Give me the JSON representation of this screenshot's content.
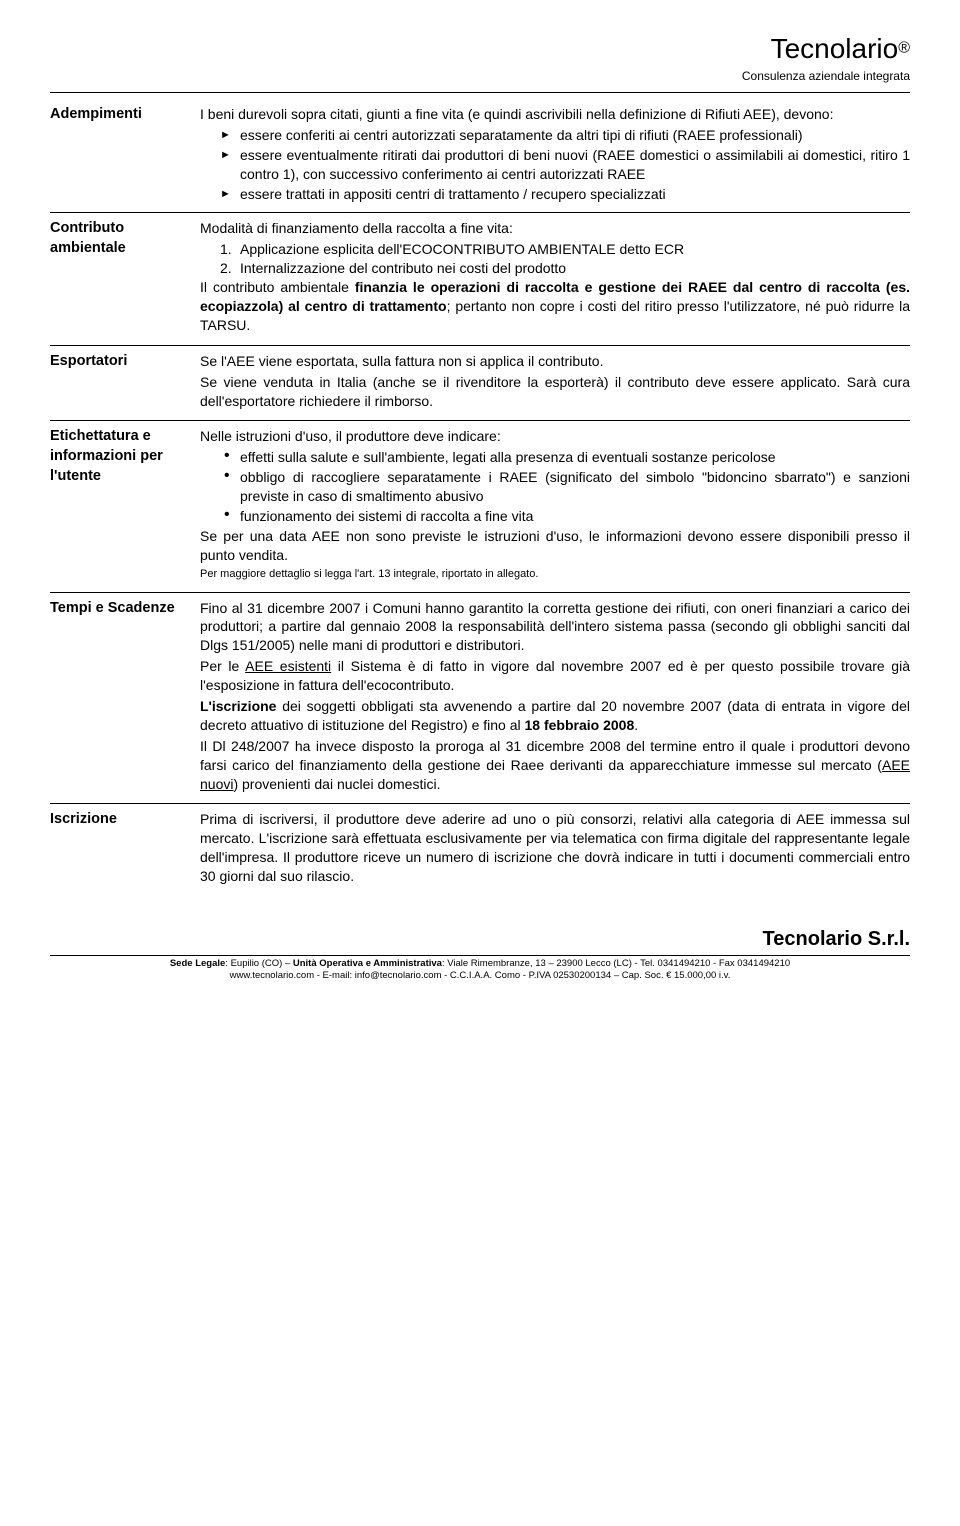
{
  "brand": {
    "name": "Tecnolario",
    "sup": "®",
    "sub": "Consulenza aziendale integrata"
  },
  "sections": {
    "adempimenti": {
      "label": "Adempimenti",
      "intro": "I beni durevoli sopra citati, giunti a fine vita (e quindi ascrivibili nella definizione di Rifiuti AEE), devono:",
      "items": [
        "essere conferiti ai centri autorizzati separatamente da altri tipi di rifiuti (RAEE professionali)",
        "essere eventualmente ritirati dai produttori di beni nuovi (RAEE domestici o assimilabili ai domestici, ritiro 1 contro 1), con successivo conferimento ai centri autorizzati RAEE",
        "essere trattati in appositi centri di trattamento / recupero specializzati"
      ]
    },
    "contributo": {
      "label": "Contributo ambientale",
      "intro": "Modalità di finanziamento della raccolta a fine vita:",
      "num_items": [
        "Applicazione esplicita dell'ECOCONTRIBUTO AMBIENTALE detto ECR",
        "Internalizzazione del contributo nei costi del prodotto"
      ],
      "body_pre": "Il contributo ambientale ",
      "body_bold1": "finanzia le operazioni di raccolta e gestione dei RAEE dal centro di raccolta (es. ecopiazzola) al centro di trattamento",
      "body_post": "; pertanto non copre i costi del ritiro presso l'utilizzatore, né può ridurre la TARSU."
    },
    "esportatori": {
      "label": "Esportatori",
      "p1": "Se l'AEE viene esportata, sulla fattura non si applica il contributo.",
      "p2": "Se viene venduta in Italia (anche se il rivenditore la esporterà) il contributo deve essere applicato. Sarà cura dell'esportatore richiedere il rimborso."
    },
    "etichettatura": {
      "label": "Etichettatura e informazioni per l'utente",
      "intro": "Nelle istruzioni d'uso, il produttore deve indicare:",
      "items": [
        "effetti sulla salute e sull'ambiente, legati alla presenza di eventuali sostanze pericolose",
        "obbligo di raccogliere separatamente i RAEE (significato del simbolo \"bidoncino sbarrato\") e sanzioni previste in caso di smaltimento abusivo",
        "funzionamento dei sistemi di raccolta a fine vita"
      ],
      "after": "Se per una data AEE non sono previste le istruzioni d'uso, le informazioni devono essere disponibili presso il punto vendita.",
      "note": "Per maggiore dettaglio si legga l'art. 13 integrale, riportato in allegato."
    },
    "tempi": {
      "label": "Tempi e Scadenze",
      "p1": "Fino al 31 dicembre 2007 i Comuni hanno garantito la corretta gestione dei rifiuti, con oneri finanziari a carico dei produttori; a partire dal gennaio 2008 la responsabilità dell'intero sistema passa (secondo gli obblighi sanciti dal Dlgs 151/2005) nelle mani di produttori e distributori.",
      "p2_pre": "Per le ",
      "p2_u": "AEE esistenti",
      "p2_post": " il Sistema è di fatto in vigore dal novembre 2007 ed è per questo possibile trovare già l'esposizione in fattura dell'ecocontributo.",
      "p3_pre": "",
      "p3_bold": "L'iscrizione",
      "p3_mid": " dei soggetti obbligati sta avvenendo a partire dal 20 novembre 2007 (data di entrata in vigore del decreto attuativo di istituzione del Registro) e fino al ",
      "p3_bold2": "18 febbraio 2008",
      "p3_post": ".",
      "p4_pre": "Il Dl 248/2007 ha invece disposto la proroga al 31 dicembre 2008 del termine entro il quale i produttori devono farsi carico del finanziamento della gestione dei Raee derivanti da apparecchiature immesse sul mercato (",
      "p4_u": "AEE nuovi",
      "p4_post": ") provenienti dai nuclei domestici."
    },
    "iscrizione": {
      "label": "Iscrizione",
      "body": "Prima di iscriversi, il produttore deve aderire ad uno o più consorzi, relativi alla categoria di AEE immessa sul mercato. L'iscrizione sarà effettuata esclusivamente per via telematica con firma digitale del rappresentante legale dell'impresa. Il produttore riceve un numero di iscrizione che dovrà indicare in tutti i documenti commerciali entro 30 giorni dal suo rilascio."
    }
  },
  "footer": {
    "brand": "Tecnolario S.r.l.",
    "line1_a": "Sede Legale",
    "line1_b": ": Eupilio (CO) – ",
    "line1_c": "Unità Operativa e Amministrativa",
    "line1_d": ": Viale Rimembranze, 13 – 23900 Lecco (LC) - Tel. 0341494210 - Fax 0341494210",
    "line2": "www.tecnolario.com - E-mail: info@tecnolario.com - C.C.I.A.A. Como - P.IVA 02530200134 – Cap. Soc. € 15.000,00 i.v."
  }
}
